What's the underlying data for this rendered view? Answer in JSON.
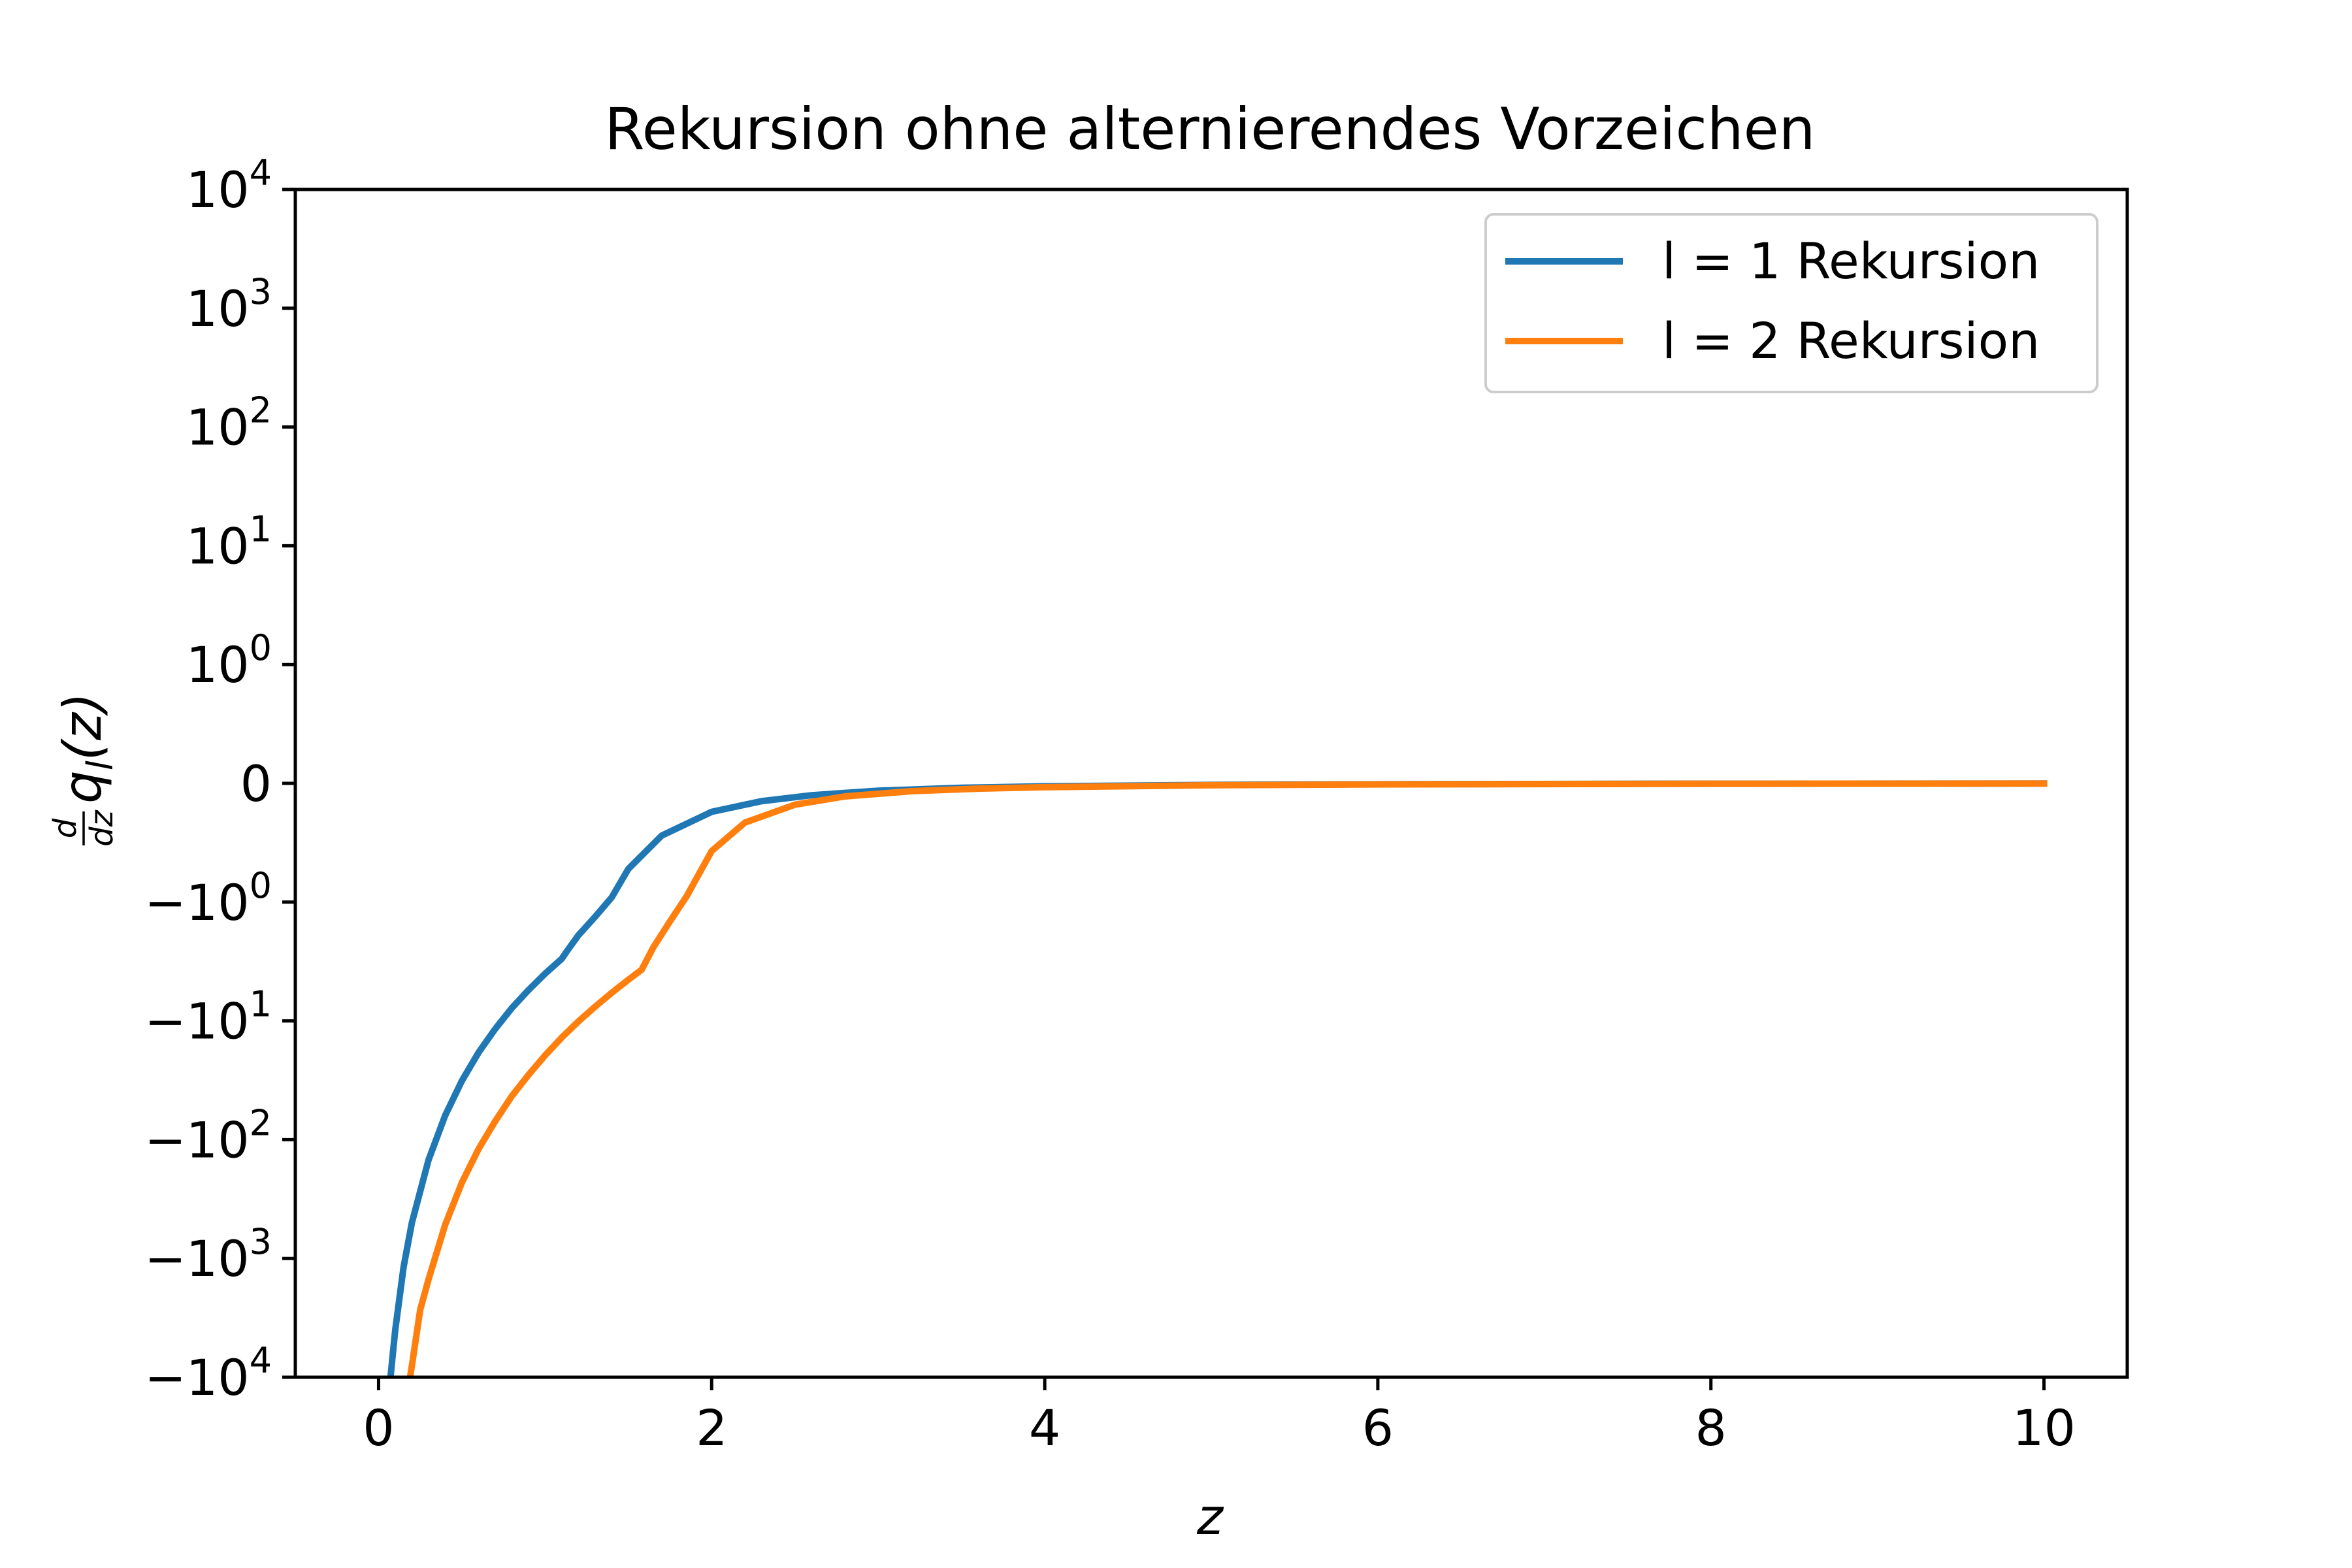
{
  "chart_data": {
    "type": "line",
    "title": "Rekursion ohne alternierendes Vorzeichen",
    "xlabel": "z",
    "ylabel": "d/dz q_l(z)",
    "ylabel_parts": {
      "num": "d",
      "den": "dz",
      "main": "q",
      "sub": "l",
      "arg": "(z)"
    },
    "xscale": "linear",
    "yscale": "symlog",
    "xlim": [
      -0.5,
      10.5
    ],
    "ylim": [
      -10000,
      10000
    ],
    "x_ticks": [
      {
        "value": 0,
        "label": "0"
      },
      {
        "value": 2,
        "label": "2"
      },
      {
        "value": 4,
        "label": "4"
      },
      {
        "value": 6,
        "label": "6"
      },
      {
        "value": 8,
        "label": "8"
      },
      {
        "value": 10,
        "label": "10"
      }
    ],
    "y_ticks": [
      {
        "value": 10000,
        "label_base": "10",
        "label_exp": "4"
      },
      {
        "value": 1000,
        "label_base": "10",
        "label_exp": "3"
      },
      {
        "value": 100,
        "label_base": "10",
        "label_exp": "2"
      },
      {
        "value": 10,
        "label_base": "10",
        "label_exp": "1"
      },
      {
        "value": 1,
        "label_base": "10",
        "label_exp": "0"
      },
      {
        "value": 0,
        "label_base": "0",
        "label_exp": ""
      },
      {
        "value": -1,
        "label_base": "−10",
        "label_exp": "0"
      },
      {
        "value": -10,
        "label_base": "−10",
        "label_exp": "1"
      },
      {
        "value": -100,
        "label_base": "−10",
        "label_exp": "2"
      },
      {
        "value": -1000,
        "label_base": "−10",
        "label_exp": "3"
      },
      {
        "value": -10000,
        "label_base": "−10",
        "label_exp": "4"
      }
    ],
    "grid": false,
    "legend_position": "top-right",
    "series": [
      {
        "name": "l = 1 Rekursion",
        "color": "#1f77b4",
        "x": [
          0.05,
          0.1,
          0.15,
          0.2,
          0.3,
          0.4,
          0.5,
          0.6,
          0.7,
          0.8,
          0.9,
          1.0,
          1.1,
          1.13,
          1.2,
          1.3,
          1.4,
          1.5,
          1.7,
          2.0,
          2.3,
          2.6,
          3.0,
          3.5,
          4.0,
          5.0,
          6.0,
          8.0,
          10.0
        ],
        "y": [
          -20000,
          -4000,
          -1184,
          -500,
          -148,
          -62.5,
          -32,
          -18.5,
          -11.7,
          -7.8,
          -5.5,
          -4.0,
          -3.0,
          -2.6,
          -1.9,
          -1.33,
          -0.96,
          -0.72,
          -0.44,
          -0.24,
          -0.15,
          -0.1,
          -0.062,
          -0.037,
          -0.025,
          -0.013,
          -0.0075,
          -0.003,
          -0.0015
        ]
      },
      {
        "name": "l = 2 Rekursion",
        "color": "#ff7f0e",
        "x": [
          0.18,
          0.2,
          0.25,
          0.3,
          0.4,
          0.5,
          0.6,
          0.7,
          0.8,
          0.9,
          1.0,
          1.1,
          1.2,
          1.3,
          1.4,
          1.5,
          1.58,
          1.65,
          1.75,
          1.85,
          2.0,
          2.2,
          2.5,
          2.8,
          3.2,
          3.6,
          4.0,
          5.0,
          6.0,
          8.0,
          10.0
        ],
        "y": [
          -12000,
          -8000,
          -2700,
          -1500,
          -520,
          -230,
          -120,
          -70,
          -43,
          -28.5,
          -19.5,
          -13.8,
          -10.1,
          -7.6,
          -5.8,
          -4.5,
          -3.7,
          -2.4,
          -1.45,
          -0.95,
          -0.57,
          -0.33,
          -0.18,
          -0.11,
          -0.066,
          -0.045,
          -0.032,
          -0.016,
          -0.009,
          -0.0036,
          -0.0018
        ]
      }
    ]
  }
}
